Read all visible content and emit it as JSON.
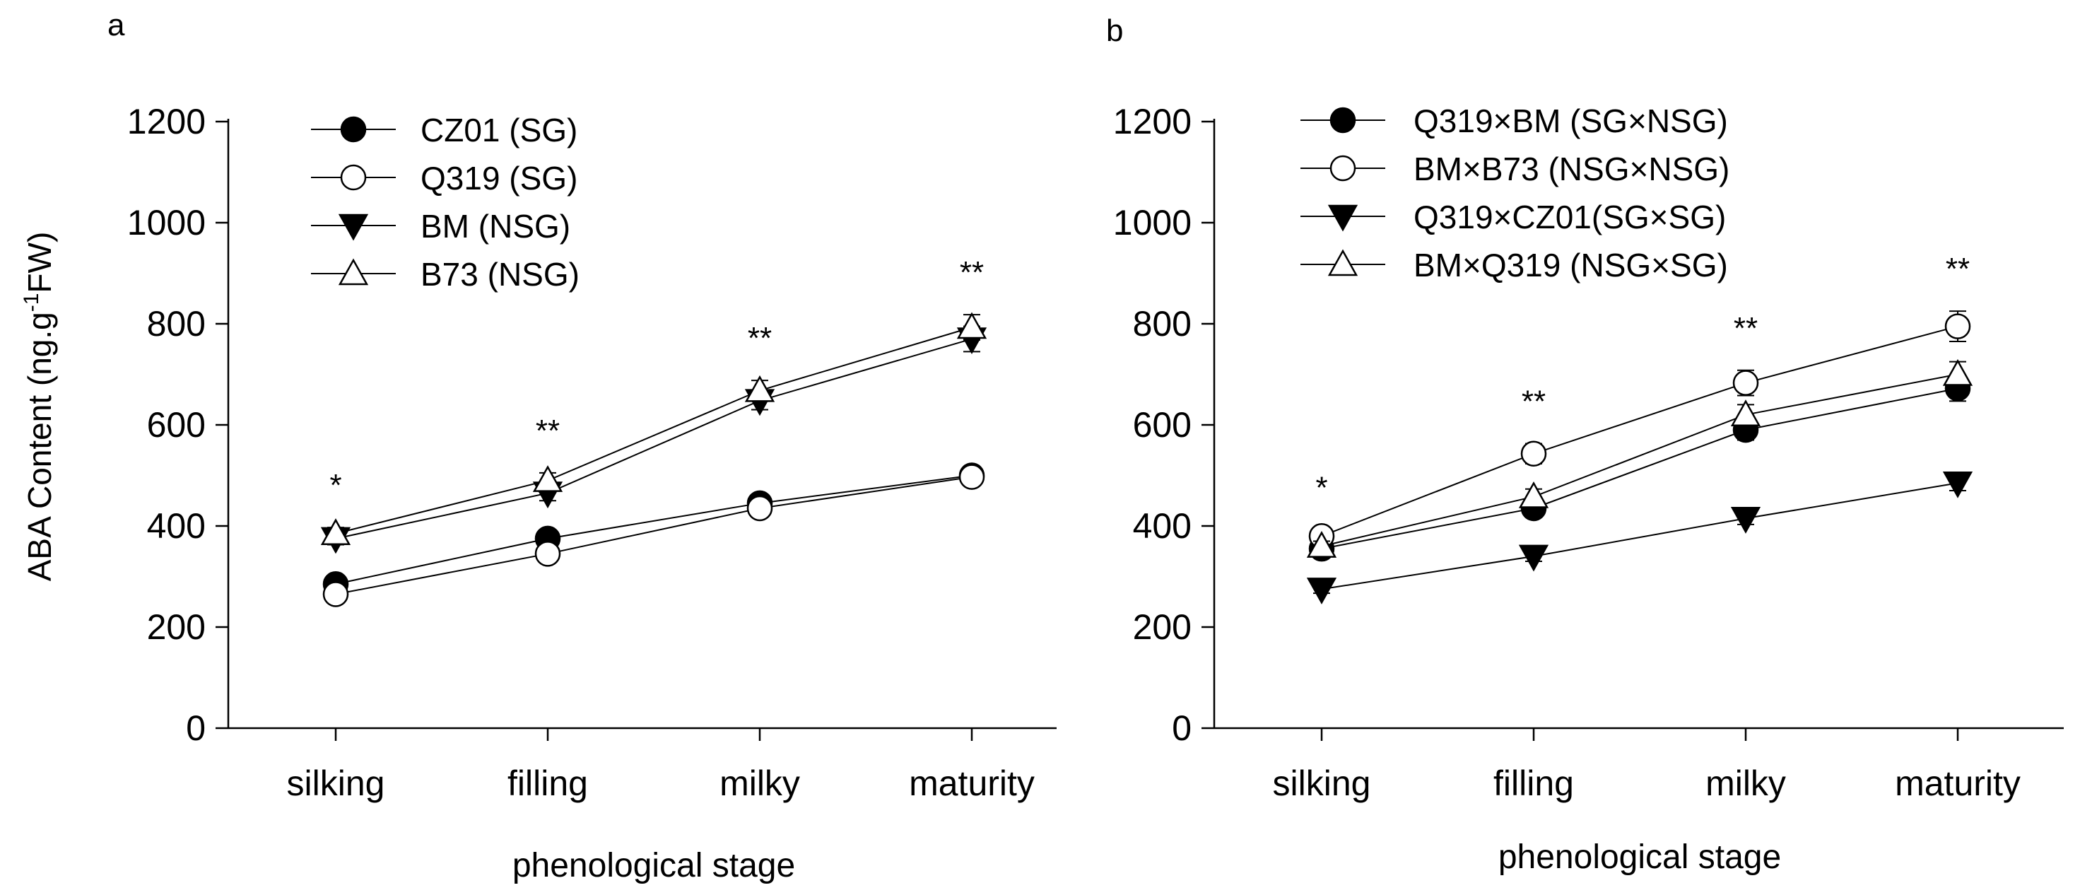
{
  "chart_data": [
    {
      "panel_label": "a",
      "type": "line",
      "categories": [
        "silking",
        "filling",
        "milky",
        "maturity"
      ],
      "xlabel": "phenological stage",
      "ylabel_main": "ABA Content (ng.g",
      "ylabel_sup": "-1",
      "ylabel_tail": "FW)",
      "ylim": [
        0,
        1200
      ],
      "yticks": [
        "0",
        "200",
        "400",
        "600",
        "800",
        "1000",
        "1200"
      ],
      "significance": [
        "*",
        "**",
        "**",
        "**"
      ],
      "legend_position": "top-left",
      "series": [
        {
          "name": "CZ01 (SG)",
          "marker": "circle-filled",
          "values": [
            285,
            375,
            445,
            500
          ],
          "errors": [
            10,
            12,
            12,
            15
          ]
        },
        {
          "name": "Q319 (SG)",
          "marker": "circle-open",
          "values": [
            265,
            345,
            435,
            497
          ],
          "errors": [
            10,
            12,
            12,
            15
          ]
        },
        {
          "name": "BM (NSG)",
          "marker": "triangle-down-filled",
          "values": [
            375,
            465,
            648,
            770
          ],
          "errors": [
            12,
            15,
            18,
            25
          ]
        },
        {
          "name": "B73 (NSG)",
          "marker": "triangle-up-open",
          "values": [
            385,
            490,
            668,
            793
          ],
          "errors": [
            12,
            15,
            20,
            25
          ]
        }
      ]
    },
    {
      "panel_label": "b",
      "type": "line",
      "categories": [
        "silking",
        "filling",
        "milky",
        "maturity"
      ],
      "xlabel": "phenological stage",
      "ylim": [
        0,
        1200
      ],
      "yticks": [
        "0",
        "200",
        "400",
        "600",
        "800",
        "1000",
        "1200"
      ],
      "significance": [
        "*",
        "**",
        "**",
        "**"
      ],
      "legend_position": "top-left",
      "series": [
        {
          "name": "Q319×BM  (SG×NSG)",
          "marker": "circle-filled",
          "values": [
            355,
            435,
            590,
            672
          ],
          "errors": [
            10,
            15,
            20,
            25
          ]
        },
        {
          "name": "BM×B73  (NSG×NSG)",
          "marker": "circle-open",
          "values": [
            380,
            543,
            683,
            795
          ],
          "errors": [
            12,
            20,
            25,
            30
          ]
        },
        {
          "name": "Q319×CZ01(SG×SG)",
          "marker": "triangle-down-filled",
          "values": [
            275,
            340,
            415,
            485
          ],
          "errors": [
            8,
            10,
            12,
            15
          ]
        },
        {
          "name": "BM×Q319  (NSG×SG)",
          "marker": "triangle-up-open",
          "values": [
            360,
            458,
            620,
            700
          ],
          "errors": [
            10,
            15,
            20,
            25
          ]
        }
      ]
    }
  ]
}
